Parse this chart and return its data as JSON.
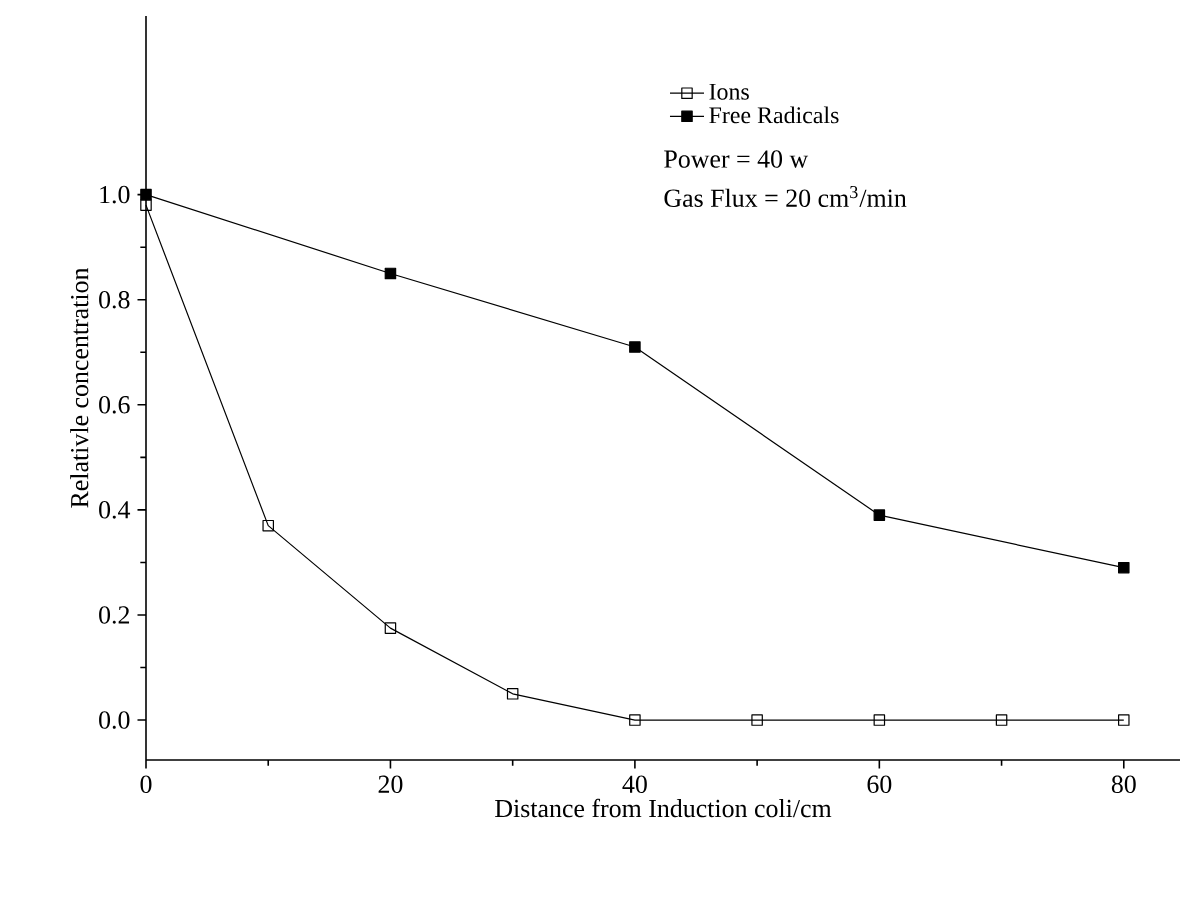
{
  "chart_data": {
    "type": "line",
    "xlabel": "Distance from Induction  coli/cm",
    "ylabel": "Relativle  concentration",
    "series": [
      {
        "name": "Ions",
        "color": "#000000",
        "x": [
          0,
          10,
          20,
          30,
          40,
          50,
          60,
          70,
          80
        ],
        "values": [
          0.98,
          0.37,
          0.175,
          0.05,
          0,
          0,
          0,
          0,
          0
        ]
      },
      {
        "name": "Free Radicals",
        "color": "#000000",
        "x": [
          0,
          20,
          40,
          60,
          80
        ],
        "values": [
          1.0,
          0.85,
          0.71,
          0.39,
          0.29
        ]
      }
    ],
    "annotations": [
      "Power = 40 w",
      "Gas Flux = 20 cm$^{3}$/min"
    ],
    "xlim": [
      0,
      84.6
    ],
    "ylim": [
      -0.076,
      1.34
    ],
    "xticks": [
      0,
      20,
      40,
      60,
      80
    ],
    "yticks": [
      {
        "value": 0,
        "label": "0.0"
      },
      {
        "value": 0.2,
        "label": "0.2"
      },
      {
        "value": 0.4,
        "label": "0.4"
      },
      {
        "value": 0.6,
        "label": "0.6"
      },
      {
        "value": 0.8,
        "label": "0.8"
      },
      {
        "value": 1.0,
        "label": "1.0"
      }
    ],
    "grid": false,
    "legend": "top right",
    "marker": "square",
    "line_style": "solid"
  }
}
